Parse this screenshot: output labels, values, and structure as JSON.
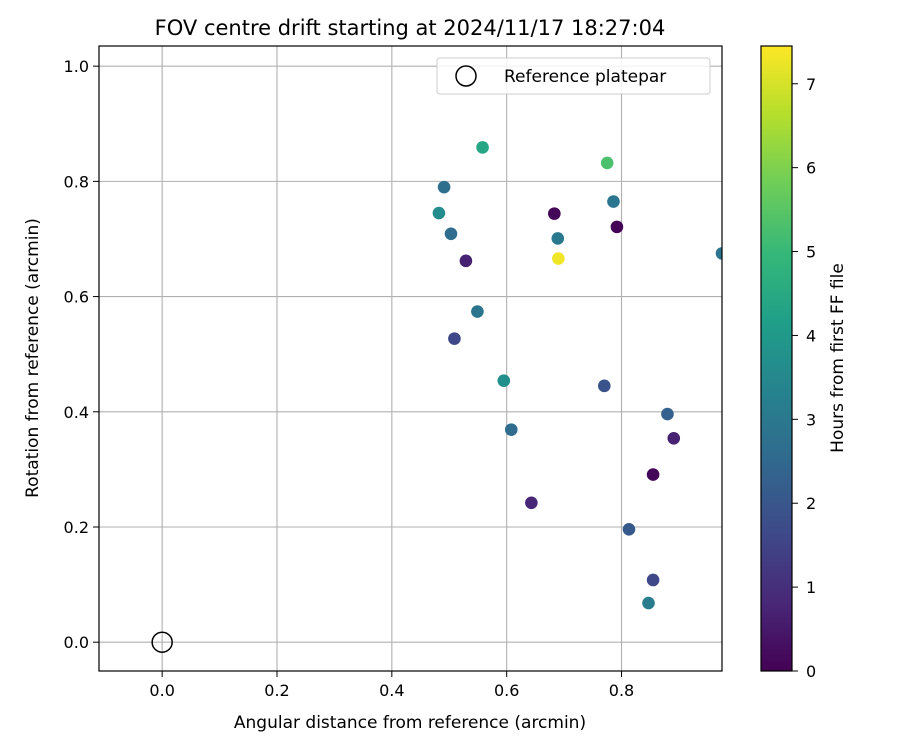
{
  "chart_data": {
    "type": "scatter",
    "title": "FOV centre drift starting at 2024/11/17 18:27:04",
    "xlabel": "Angular distance from reference (arcmin)",
    "ylabel": "Rotation from reference (arcmin)",
    "xlim": [
      -0.11,
      0.975
    ],
    "ylim": [
      -0.05,
      1.035
    ],
    "xticks": [
      0.0,
      0.2,
      0.4,
      0.6,
      0.8
    ],
    "xtick_labels": [
      "0.0",
      "0.2",
      "0.4",
      "0.6",
      "0.8"
    ],
    "yticks": [
      0.0,
      0.2,
      0.4,
      0.6,
      0.8,
      1.0
    ],
    "ytick_labels": [
      "0.0",
      "0.2",
      "0.4",
      "0.6",
      "0.8",
      "1.0"
    ],
    "grid": true,
    "legend_position": "top-right",
    "colormap": "viridis",
    "colorbar": {
      "label": "Hours from first FF file",
      "range": [
        0,
        7.45
      ],
      "ticks": [
        0,
        1,
        2,
        3,
        4,
        5,
        6,
        7
      ],
      "tick_labels": [
        "0",
        "1",
        "2",
        "3",
        "4",
        "5",
        "6",
        "7"
      ]
    },
    "reference": {
      "name": "Reference platepar",
      "x": 0.0,
      "y": 0.0,
      "marker": "open-circle",
      "edge_color": "#000000"
    },
    "series": [
      {
        "points": [
          {
            "x": 0.558,
            "y": 0.859,
            "c": 4.4
          },
          {
            "x": 0.775,
            "y": 0.832,
            "c": 5.3
          },
          {
            "x": 0.491,
            "y": 0.79,
            "c": 2.7
          },
          {
            "x": 0.786,
            "y": 0.765,
            "c": 2.9
          },
          {
            "x": 0.482,
            "y": 0.745,
            "c": 3.6
          },
          {
            "x": 0.683,
            "y": 0.744,
            "c": 0.1
          },
          {
            "x": 0.792,
            "y": 0.721,
            "c": 0.05
          },
          {
            "x": 0.503,
            "y": 0.709,
            "c": 2.6
          },
          {
            "x": 0.689,
            "y": 0.701,
            "c": 3.0
          },
          {
            "x": 0.975,
            "y": 0.675,
            "c": 2.9
          },
          {
            "x": 0.69,
            "y": 0.666,
            "c": 7.3
          },
          {
            "x": 0.529,
            "y": 0.662,
            "c": 0.7
          },
          {
            "x": 0.549,
            "y": 0.574,
            "c": 2.9
          },
          {
            "x": 0.509,
            "y": 0.527,
            "c": 1.6
          },
          {
            "x": 0.595,
            "y": 0.454,
            "c": 3.7
          },
          {
            "x": 0.77,
            "y": 0.445,
            "c": 1.9
          },
          {
            "x": 0.88,
            "y": 0.396,
            "c": 2.3
          },
          {
            "x": 0.608,
            "y": 0.369,
            "c": 2.6
          },
          {
            "x": 0.891,
            "y": 0.354,
            "c": 0.7
          },
          {
            "x": 0.855,
            "y": 0.291,
            "c": 0.1
          },
          {
            "x": 0.643,
            "y": 0.242,
            "c": 0.8
          },
          {
            "x": 0.813,
            "y": 0.196,
            "c": 2.1
          },
          {
            "x": 0.855,
            "y": 0.108,
            "c": 1.6
          },
          {
            "x": 0.847,
            "y": 0.068,
            "c": 3.1
          }
        ]
      }
    ]
  }
}
